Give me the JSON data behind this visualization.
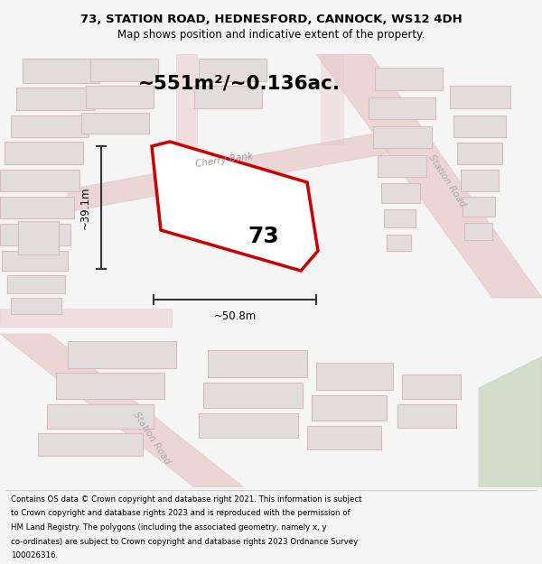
{
  "title_line1": "73, STATION ROAD, HEDNESFORD, CANNOCK, WS12 4DH",
  "title_line2": "Map shows position and indicative extent of the property.",
  "area_text": "~551m²/~0.136ac.",
  "number_label": "73",
  "dim_width": "~50.8m",
  "dim_height": "~39.1m",
  "street_label_upper": "Station Road",
  "street_label_lower": "Station Road",
  "street_label_cherry": "Cherry Bank",
  "footer_lines": [
    "Contains OS data © Crown copyright and database right 2021. This information is subject",
    "to Crown copyright and database rights 2023 and is reproduced with the permission of",
    "HM Land Registry. The polygons (including the associated geometry, namely x, y",
    "co-ordinates) are subject to Crown copyright and database rights 2023 Ordnance Survey",
    "100026316."
  ],
  "bg_color": "#f5f5f5",
  "map_bg": "#eeecec",
  "plot_outline_color": "#cc0000",
  "road_color": "#e8c8c8",
  "building_fill": "#e2dcdc",
  "building_edge": "#dbbaba",
  "dim_line_color": "#333333",
  "title_color": "#000000",
  "footer_color": "#000000",
  "green_color": "#c8d8c0"
}
